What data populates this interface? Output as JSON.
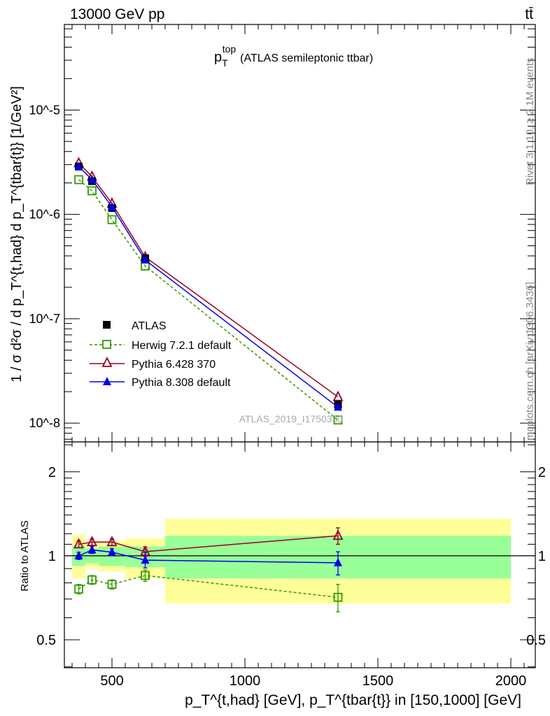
{
  "header": {
    "left": "13000 GeV pp",
    "right": "tt̄"
  },
  "side_labels": {
    "rivet": "Rivet 3.1.10, ≥ 2.1M events",
    "mcplots": "mcplots.cern.ch [arXiv:1306.3436]"
  },
  "analysis_id": "ATLAS_2019_I1750330",
  "colors": {
    "atlas": "#000000",
    "herwig": "#339900",
    "pythia6": "#990022",
    "pythia8": "#0000ee",
    "band_inner": "#99ff99",
    "band_outer": "#ffff99"
  },
  "chart_data": [
    {
      "type": "line",
      "title": "p_T^top (ATLAS semileptonic ttbar)",
      "title_main": "p",
      "title_sub": "T",
      "title_sup": "top",
      "title_rest": "(ATLAS semileptonic ttbar)",
      "ylabel": "1 / σ d²σ / d p_T^{t,had} d p_T^{tbar{t}} [1/GeV²]",
      "yscale": "log",
      "ylim": [
        6.6e-09,
        6.6e-05
      ],
      "xlim": [
        321,
        2092
      ],
      "ytick_labels": [
        "10^-5",
        "10^-6",
        "10^-7",
        "10^-8"
      ],
      "x": [
        375,
        425,
        500,
        625,
        1350
      ],
      "legend_position": "bottom-left",
      "series": [
        {
          "name": "ATLAS",
          "marker": "filled-square",
          "values": [
            2.87e-06,
            2.08e-06,
            1.15e-06,
            3.8e-07,
            1.5e-08
          ]
        },
        {
          "name": "Herwig 7.2.1 default",
          "marker": "open-square",
          "style": "dashed",
          "values": [
            2.15e-06,
            1.68e-06,
            8.9e-07,
            3.2e-07,
            1.07e-08
          ]
        },
        {
          "name": "Pythia 6.428 370",
          "marker": "open-triangle",
          "style": "solid",
          "values": [
            3.1e-06,
            2.3e-06,
            1.27e-06,
            3.9e-07,
            1.78e-08
          ]
        },
        {
          "name": "Pythia 8.308 default",
          "marker": "filled-triangle",
          "style": "solid",
          "values": [
            2.87e-06,
            2.15e-06,
            1.18e-06,
            3.65e-07,
            1.42e-08
          ]
        }
      ]
    },
    {
      "type": "line",
      "ylabel": "Ratio to ATLAS",
      "xlabel": "p_T^{t,had} [GeV], p_T^{tbar{t}} in [150,1000] [GeV]",
      "yscale": "log",
      "ylim": [
        0.397,
        2.56
      ],
      "xlim": [
        321,
        2092
      ],
      "xticks": [
        500,
        1000,
        1500,
        2000
      ],
      "xtick_labels": [
        "500",
        "1000",
        "1500",
        "2000"
      ],
      "yticks": [
        0.5,
        1,
        2
      ],
      "ytick_labels": [
        "0.5",
        "1",
        "2"
      ],
      "bins": [
        [
          350,
          400
        ],
        [
          400,
          450
        ],
        [
          450,
          550
        ],
        [
          550,
          700
        ],
        [
          700,
          2000
        ]
      ],
      "band_inner": [
        [
          0.92,
          1.09
        ],
        [
          0.94,
          1.06
        ],
        [
          0.92,
          1.08
        ],
        [
          0.91,
          1.08
        ],
        [
          0.83,
          1.18
        ]
      ],
      "band_outer": [
        [
          0.83,
          1.19
        ],
        [
          0.9,
          1.12
        ],
        [
          0.88,
          1.13
        ],
        [
          0.83,
          1.155
        ],
        [
          0.675,
          1.36
        ]
      ],
      "x": [
        375,
        425,
        500,
        625,
        1350
      ],
      "series": [
        {
          "name": "Herwig 7.2.1 default",
          "values": [
            0.76,
            0.82,
            0.79,
            0.85,
            0.71
          ],
          "errors": [
            0.03,
            0.03,
            0.03,
            0.04,
            0.08
          ]
        },
        {
          "name": "Pythia 6.428 370",
          "values": [
            1.1,
            1.12,
            1.12,
            1.035,
            1.18
          ],
          "errors": [
            0.03,
            0.03,
            0.03,
            0.04,
            0.08
          ]
        },
        {
          "name": "Pythia 8.308 default",
          "values": [
            1.0,
            1.05,
            1.03,
            0.965,
            0.944
          ],
          "errors": [
            0.03,
            0.03,
            0.03,
            0.06,
            0.09
          ]
        }
      ]
    }
  ]
}
